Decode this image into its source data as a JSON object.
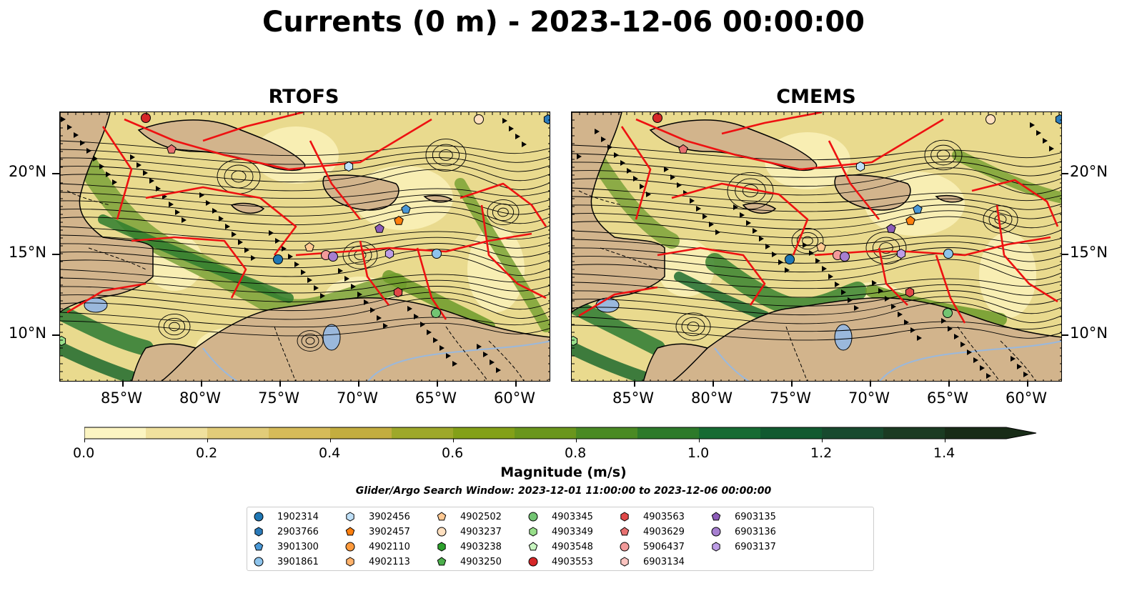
{
  "title": "Currents (0 m) - 2023-12-06 00:00:00",
  "panels": [
    {
      "title": "RTOFS"
    },
    {
      "title": "CMEMS"
    }
  ],
  "axes": {
    "lon_ticks": [
      "85°W",
      "80°W",
      "75°W",
      "70°W",
      "65°W",
      "60°W"
    ],
    "lat_ticks": [
      "20°N",
      "15°N",
      "10°N"
    ]
  },
  "colorbar": {
    "label": "Magnitude (m/s)",
    "ticks": [
      "0.0",
      "0.2",
      "0.4",
      "0.6",
      "0.8",
      "1.0",
      "1.2",
      "1.4"
    ],
    "colors": [
      "#fcf5c2",
      "#f0e19e",
      "#e2cc79",
      "#d6bb59",
      "#c3ad3f",
      "#9ea82a",
      "#83a018",
      "#6a961c",
      "#4a8a23",
      "#2d7a2a",
      "#166b33",
      "#115a30",
      "#184a2e",
      "#1b3b22",
      "#182c17"
    ]
  },
  "search_window": "Glider/Argo Search Window: 2023-12-01 11:00:00 to 2023-12-06 00:00:00",
  "legend": [
    {
      "id": "1902314",
      "marker": "circle",
      "color": "#1f77b4"
    },
    {
      "id": "2903766",
      "marker": "hexagon",
      "color": "#2b7bba"
    },
    {
      "id": "3901300",
      "marker": "pentagon",
      "color": "#4a98d6"
    },
    {
      "id": "3901861",
      "marker": "circle",
      "color": "#8ec4ec"
    },
    {
      "id": "3902456",
      "marker": "hexagon",
      "color": "#bfe0f8"
    },
    {
      "id": "3902457",
      "marker": "pentagon",
      "color": "#ff7f0e"
    },
    {
      "id": "4902110",
      "marker": "circle",
      "color": "#ff9a3c"
    },
    {
      "id": "4902113",
      "marker": "hexagon",
      "color": "#ffb26b"
    },
    {
      "id": "4902502",
      "marker": "pentagon",
      "color": "#ffc892"
    },
    {
      "id": "4903237",
      "marker": "circle",
      "color": "#ffe0c0"
    },
    {
      "id": "4903238",
      "marker": "hexagon",
      "color": "#2ca02c"
    },
    {
      "id": "4903250",
      "marker": "pentagon",
      "color": "#4caf4c"
    },
    {
      "id": "4903345",
      "marker": "circle",
      "color": "#72c472"
    },
    {
      "id": "4903349",
      "marker": "hexagon",
      "color": "#98df8a"
    },
    {
      "id": "4903548",
      "marker": "pentagon",
      "color": "#c8f5c0"
    },
    {
      "id": "4903553",
      "marker": "circle",
      "color": "#d62728"
    },
    {
      "id": "4903563",
      "marker": "hexagon",
      "color": "#e04848"
    },
    {
      "id": "4903629",
      "marker": "pentagon",
      "color": "#e87070"
    },
    {
      "id": "5906437",
      "marker": "circle",
      "color": "#f29a9a"
    },
    {
      "id": "6903134",
      "marker": "hexagon",
      "color": "#fbc4c0"
    },
    {
      "id": "6903135",
      "marker": "pentagon",
      "color": "#8c5cb8"
    },
    {
      "id": "6903136",
      "marker": "circle",
      "color": "#a67fd0"
    },
    {
      "id": "6903137",
      "marker": "hexagon",
      "color": "#bd9de6"
    }
  ]
}
